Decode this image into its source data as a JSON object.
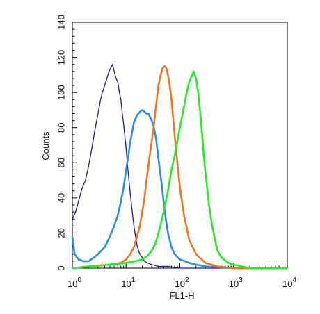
{
  "chart_data": {
    "type": "line",
    "title": "",
    "xlabel": "FL1-H",
    "ylabel": "Counts",
    "x_scale": "log",
    "xlim": [
      1,
      10000
    ],
    "ylim": [
      0,
      140
    ],
    "grid": false,
    "x_ticks": [
      {
        "value": 1,
        "base": "10",
        "exp": "0"
      },
      {
        "value": 10,
        "base": "10",
        "exp": "1"
      },
      {
        "value": 100,
        "base": "10",
        "exp": "2"
      },
      {
        "value": 1000,
        "base": "10",
        "exp": "3"
      },
      {
        "value": 10000,
        "base": "10",
        "exp": "4"
      }
    ],
    "y_ticks": [
      {
        "value": 0,
        "label": "0"
      },
      {
        "value": 20,
        "label": "20"
      },
      {
        "value": 40,
        "label": "40"
      },
      {
        "value": 60,
        "label": "60"
      },
      {
        "value": 80,
        "label": "80"
      },
      {
        "value": 100,
        "label": "100"
      },
      {
        "value": 120,
        "label": "120"
      },
      {
        "value": 140,
        "label": "140"
      }
    ],
    "series": [
      {
        "color": "#1a1a8c",
        "x": [
          1,
          1.15,
          1.3,
          1.5,
          1.75,
          2,
          2.3,
          2.6,
          3,
          3.3,
          3.6,
          4,
          4.4,
          4.8,
          5.2,
          5.6,
          6,
          6.5,
          7,
          7.5,
          8,
          8.5,
          9,
          10,
          11,
          12,
          13,
          14,
          15,
          16,
          17,
          18,
          20,
          22,
          25,
          30,
          40,
          60,
          100,
          200,
          1000,
          10000
        ],
        "y": [
          28,
          32,
          38,
          45,
          50,
          58,
          68,
          78,
          88,
          95,
          100,
          104,
          108,
          112,
          114,
          116,
          112,
          108,
          106,
          100,
          96,
          88,
          82,
          68,
          54,
          42,
          32,
          24,
          18,
          13,
          10,
          8,
          6,
          4,
          3,
          2,
          1,
          1,
          0,
          0,
          0,
          0
        ]
      },
      {
        "color": "#2b8de6",
        "x": [
          1,
          1.1,
          1.3,
          1.6,
          2,
          2.5,
          3,
          4,
          5,
          6,
          7,
          8,
          9,
          10,
          11,
          12,
          13,
          14,
          16,
          18,
          20,
          22,
          24,
          26,
          28,
          30,
          33,
          36,
          40,
          45,
          50,
          55,
          60,
          70,
          80,
          100,
          150,
          200,
          300,
          1000,
          10000
        ],
        "y": [
          18,
          8,
          5,
          4,
          4,
          6,
          8,
          12,
          18,
          24,
          30,
          38,
          46,
          56,
          64,
          72,
          78,
          83,
          87,
          89,
          90,
          89,
          88,
          88,
          86,
          84,
          80,
          74,
          62,
          50,
          38,
          28,
          20,
          12,
          8,
          5,
          3,
          2,
          1,
          0,
          0
        ]
      },
      {
        "color": "#f07322",
        "x": [
          1,
          2,
          5,
          8,
          10,
          12,
          14,
          16,
          18,
          20,
          22,
          24,
          26,
          28,
          30,
          33,
          36,
          40,
          44,
          48,
          52,
          56,
          60,
          65,
          70,
          75,
          80,
          90,
          100,
          120,
          150,
          200,
          300,
          500,
          1000,
          10000
        ],
        "y": [
          0,
          1,
          2,
          3,
          5,
          8,
          12,
          18,
          24,
          32,
          40,
          50,
          58,
          66,
          72,
          82,
          92,
          104,
          110,
          114,
          115,
          114,
          110,
          104,
          96,
          86,
          76,
          60,
          46,
          30,
          16,
          8,
          3,
          1,
          0,
          0
        ]
      },
      {
        "color": "#22ee22",
        "x": [
          1,
          5,
          10,
          15,
          20,
          25,
          30,
          35,
          40,
          45,
          50,
          55,
          60,
          70,
          80,
          90,
          100,
          110,
          120,
          130,
          140,
          150,
          160,
          170,
          180,
          190,
          200,
          220,
          240,
          260,
          280,
          300,
          350,
          400,
          500,
          600,
          800,
          1000,
          2000,
          10000
        ],
        "y": [
          0,
          2,
          3,
          4,
          5,
          7,
          10,
          14,
          20,
          26,
          32,
          38,
          44,
          56,
          64,
          72,
          80,
          86,
          92,
          98,
          102,
          106,
          108,
          110,
          112,
          110,
          108,
          100,
          88,
          76,
          64,
          54,
          36,
          24,
          10,
          6,
          3,
          2,
          0,
          0
        ]
      }
    ]
  }
}
